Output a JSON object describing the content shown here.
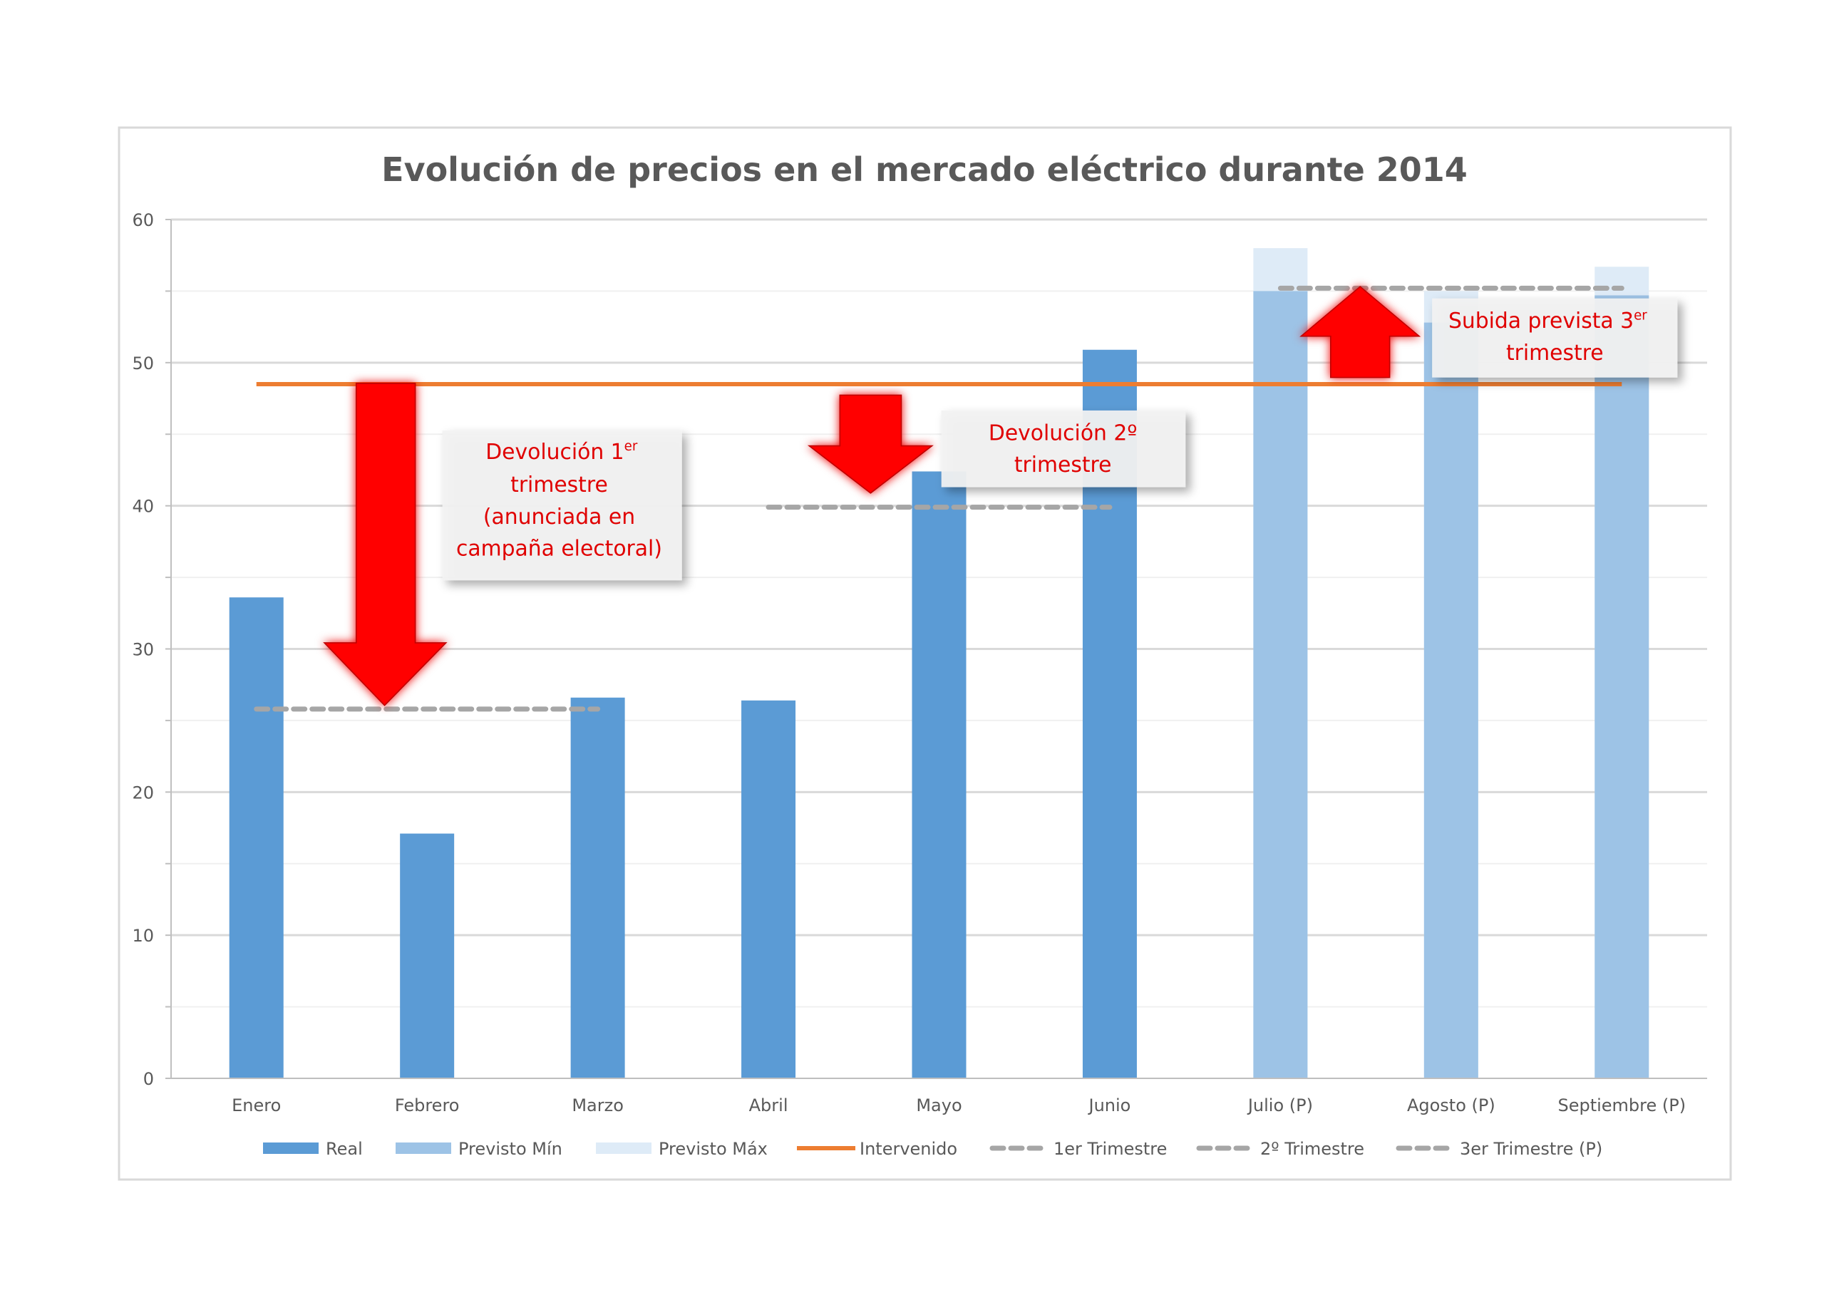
{
  "chart_data": {
    "type": "bar",
    "title": "Evolución de precios en el mercado eléctrico durante 2014",
    "xlabel": "",
    "ylabel": "",
    "ylim": [
      0,
      60
    ],
    "yticks": [
      0,
      10,
      20,
      30,
      40,
      50,
      60
    ],
    "grid": true,
    "legend_position": "bottom",
    "categories": [
      "Enero",
      "Febrero",
      "Marzo",
      "Abril",
      "Mayo",
      "Junio",
      "Julio (P)",
      "Agosto (P)",
      "Septiembre (P)"
    ],
    "series": [
      {
        "name": "Real",
        "type": "bar",
        "color": "#5b9bd5",
        "values": [
          33.6,
          17.1,
          26.6,
          26.4,
          42.4,
          50.9,
          null,
          null,
          null
        ]
      },
      {
        "name": "Previsto Mín",
        "type": "bar",
        "color": "#9dc3e6",
        "values": [
          null,
          null,
          null,
          null,
          null,
          null,
          55.0,
          52.8,
          54.7
        ]
      },
      {
        "name": "Previsto Máx",
        "type": "bar",
        "color": "#deebf7",
        "values": [
          null,
          null,
          null,
          null,
          null,
          null,
          58.0,
          55.0,
          56.7
        ]
      },
      {
        "name": "Intervenido",
        "type": "line",
        "color": "#ed7d31",
        "value": 48.5,
        "from": 0,
        "to": 8
      },
      {
        "name": "1er Trimestre",
        "type": "dashed",
        "color": "#a6a6a6",
        "value": 25.8,
        "from": 0,
        "to": 2
      },
      {
        "name": "2º Trimestre",
        "type": "dashed",
        "color": "#a6a6a6",
        "value": 39.9,
        "from": 3,
        "to": 5
      },
      {
        "name": "3er Trimestre (P)",
        "type": "dashed",
        "color": "#a6a6a6",
        "value": 55.2,
        "from": 6,
        "to": 8
      }
    ],
    "annotations": [
      {
        "line1": "Devolución 1",
        "sup": "er",
        "line2": "trimestre",
        "line3": "(anunciada en",
        "line4": "campaña electoral)"
      },
      {
        "line1": "Devolución 2º",
        "line2": "trimestre"
      },
      {
        "line1": "Subida prevista 3",
        "sup": "er",
        "line2": "trimestre"
      }
    ]
  }
}
